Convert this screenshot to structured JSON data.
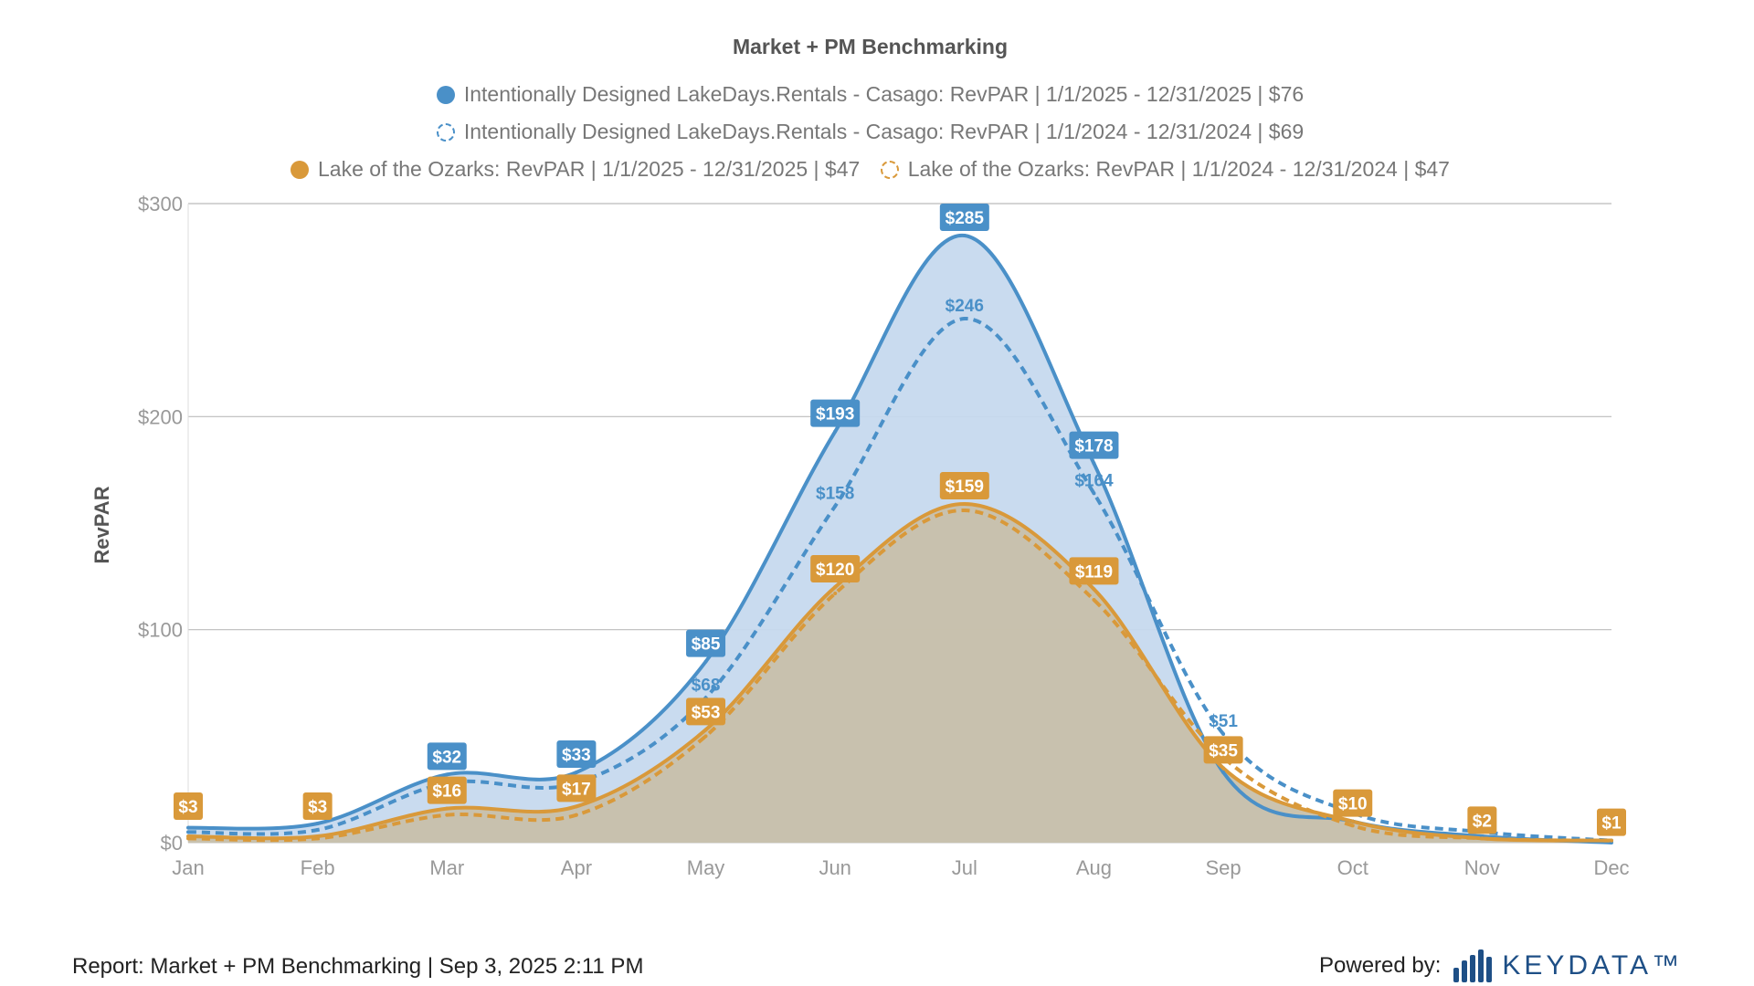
{
  "chart_data": {
    "type": "area",
    "title": "Market + PM Benchmarking",
    "ylabel": "RevPAR",
    "xlabel": "",
    "categories": [
      "Jan",
      "Feb",
      "Mar",
      "Apr",
      "May",
      "Jun",
      "Jul",
      "Aug",
      "Sep",
      "Oct",
      "Nov",
      "Dec"
    ],
    "yticks": [
      "$0",
      "$100",
      "$200",
      "$300"
    ],
    "ytick_values": [
      0,
      100,
      200,
      300
    ],
    "ylim": [
      0,
      300
    ],
    "grid": true,
    "legend_position": "top",
    "series": [
      {
        "name": "Intentionally Designed LakeDays.Rentals - Casago: RevPAR | 1/1/2025 - 12/31/2025 | $76",
        "color": "#4a90c8",
        "style": "solid",
        "marker": "filled",
        "fill": "#c6d9ee",
        "values": [
          7,
          9,
          32,
          33,
          85,
          193,
          285,
          178,
          33,
          10,
          3,
          0
        ],
        "labels": [
          null,
          null,
          "$32",
          "$33",
          "$85",
          "$193",
          "$285",
          "$178",
          null,
          null,
          null,
          null
        ]
      },
      {
        "name": "Intentionally Designed LakeDays.Rentals - Casago: RevPAR | 1/1/2024 - 12/31/2024 | $69",
        "color": "#4a90c8",
        "style": "dashed",
        "marker": "hollow",
        "values": [
          5,
          6,
          28,
          28,
          68,
          158,
          246,
          164,
          51,
          14,
          5,
          1
        ],
        "labels": [
          null,
          null,
          null,
          null,
          "$68",
          "$158",
          "$246",
          "$164",
          "$51",
          null,
          null,
          null
        ]
      },
      {
        "name": "Lake of the Ozarks: RevPAR | 1/1/2025 - 12/31/2025 | $47",
        "color": "#d9993a",
        "style": "solid",
        "marker": "filled",
        "fill": "#c8c0aa",
        "values": [
          3,
          3,
          16,
          17,
          53,
          120,
          159,
          119,
          35,
          10,
          2,
          1
        ],
        "labels": [
          "$3",
          "$3",
          "$16",
          "$17",
          "$53",
          "$120",
          "$159",
          "$119",
          "$35",
          "$10",
          "$2",
          "$1"
        ]
      },
      {
        "name": "Lake of the Ozarks: RevPAR | 1/1/2024 - 12/31/2024 | $47",
        "color": "#d9993a",
        "style": "dashed",
        "marker": "hollow",
        "values": [
          2,
          2,
          13,
          13,
          50,
          117,
          156,
          114,
          40,
          8,
          2,
          1
        ],
        "labels": [
          null,
          null,
          null,
          null,
          null,
          null,
          null,
          null,
          null,
          null,
          null,
          null
        ]
      }
    ]
  },
  "footer": {
    "report": "Report: Market + PM Benchmarking | Sep 3, 2025 2:11 PM",
    "powered_by": "Powered by:",
    "logo": "KEYDATA™"
  }
}
